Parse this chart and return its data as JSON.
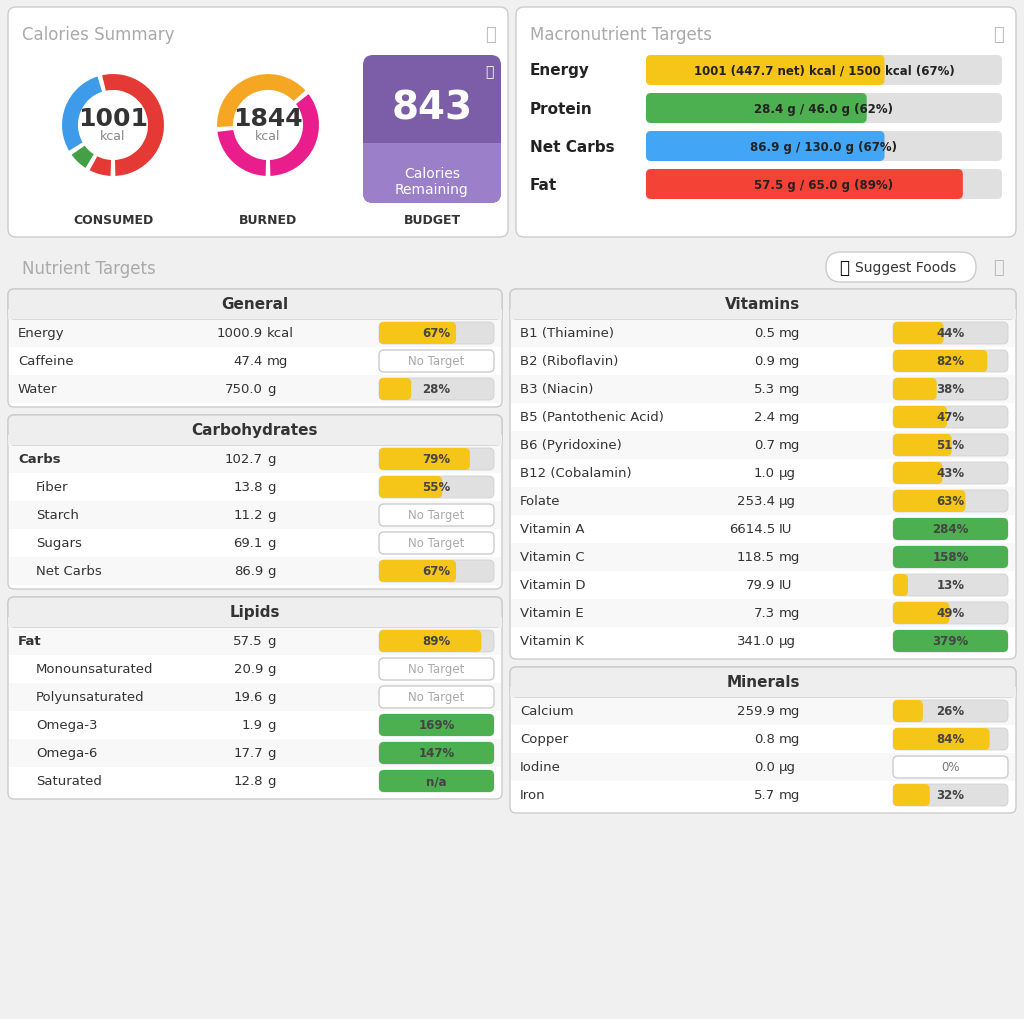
{
  "bg_color": "#f0f0f0",
  "panel_bg": "#ffffff",
  "panel_border": "#d0d0d0",
  "title_color": "#999999",
  "section_header_bg": "#eeeeee",
  "bar_bg_color": "#e0e0e0",
  "bar_orange_color": "#f5c518",
  "bar_green_color": "#4caf50",
  "no_target_text": "#aaaaaa",
  "purple_dark": "#7b5ea7",
  "purple_light": "#9b7fc8",
  "calories_summary": {
    "title": "Calories Summary",
    "consumed_value": "1001",
    "consumed_label": "kcal",
    "consumed_text": "CONSUMED",
    "burned_value": "1844",
    "burned_label": "kcal",
    "burned_text": "BURNED",
    "budget_value": "843",
    "budget_text": "Calories\nRemaining",
    "budget_label": "BUDGET"
  },
  "macronutrient_targets": {
    "title": "Macronutrient Targets",
    "rows": [
      {
        "label": "Energy",
        "text": "1001 (447.7 net) kcal / 1500 kcal (67%)",
        "pct": 0.67,
        "color": "#f5c518"
      },
      {
        "label": "Protein",
        "text": "28.4 g / 46.0 g (62%)",
        "pct": 0.62,
        "color": "#4caf50"
      },
      {
        "label": "Net Carbs",
        "text": "86.9 g / 130.0 g (67%)",
        "pct": 0.67,
        "color": "#42a5f5"
      },
      {
        "label": "Fat",
        "text": "57.5 g / 65.0 g (89%)",
        "pct": 0.89,
        "color": "#f44336"
      }
    ]
  },
  "nutrient_targets_title": "Nutrient Targets",
  "general_section": {
    "title": "General",
    "rows": [
      {
        "name": "Energy",
        "value": "1000.9",
        "unit": "kcal",
        "bar_pct": 0.67,
        "bar_type": "orange",
        "label": "67%",
        "indent": false
      },
      {
        "name": "Caffeine",
        "value": "47.4",
        "unit": "mg",
        "bar_pct": 0,
        "bar_type": "none",
        "label": "No Target",
        "indent": false
      },
      {
        "name": "Water",
        "value": "750.0",
        "unit": "g",
        "bar_pct": 0.28,
        "bar_type": "orange",
        "label": "28%",
        "indent": false
      }
    ]
  },
  "carbs_section": {
    "title": "Carbohydrates",
    "rows": [
      {
        "name": "Carbs",
        "value": "102.7",
        "unit": "g",
        "bar_pct": 0.79,
        "bar_type": "orange",
        "label": "79%",
        "indent": false
      },
      {
        "name": "Fiber",
        "value": "13.8",
        "unit": "g",
        "bar_pct": 0.55,
        "bar_type": "orange",
        "label": "55%",
        "indent": true
      },
      {
        "name": "Starch",
        "value": "11.2",
        "unit": "g",
        "bar_pct": 0,
        "bar_type": "none",
        "label": "No Target",
        "indent": true
      },
      {
        "name": "Sugars",
        "value": "69.1",
        "unit": "g",
        "bar_pct": 0,
        "bar_type": "none",
        "label": "No Target",
        "indent": true
      },
      {
        "name": "Net Carbs",
        "value": "86.9",
        "unit": "g",
        "bar_pct": 0.67,
        "bar_type": "orange",
        "label": "67%",
        "indent": true
      }
    ]
  },
  "lipids_section": {
    "title": "Lipids",
    "rows": [
      {
        "name": "Fat",
        "value": "57.5",
        "unit": "g",
        "bar_pct": 0.89,
        "bar_type": "orange",
        "label": "89%",
        "indent": false
      },
      {
        "name": "Monounsaturated",
        "value": "20.9",
        "unit": "g",
        "bar_pct": 0,
        "bar_type": "none",
        "label": "No Target",
        "indent": true
      },
      {
        "name": "Polyunsaturated",
        "value": "19.6",
        "unit": "g",
        "bar_pct": 0,
        "bar_type": "none",
        "label": "No Target",
        "indent": true
      },
      {
        "name": "Omega-3",
        "value": "1.9",
        "unit": "g",
        "bar_pct": 1.0,
        "bar_type": "green",
        "label": "169%",
        "indent": true
      },
      {
        "name": "Omega-6",
        "value": "17.7",
        "unit": "g",
        "bar_pct": 1.0,
        "bar_type": "green",
        "label": "147%",
        "indent": true
      },
      {
        "name": "Saturated",
        "value": "12.8",
        "unit": "g",
        "bar_pct": 1.0,
        "bar_type": "green",
        "label": "n/a",
        "indent": true
      }
    ]
  },
  "vitamins_section": {
    "title": "Vitamins",
    "rows": [
      {
        "name": "B1 (Thiamine)",
        "value": "0.5",
        "unit": "mg",
        "bar_pct": 0.44,
        "bar_type": "orange",
        "label": "44%"
      },
      {
        "name": "B2 (Riboflavin)",
        "value": "0.9",
        "unit": "mg",
        "bar_pct": 0.82,
        "bar_type": "orange",
        "label": "82%"
      },
      {
        "name": "B3 (Niacin)",
        "value": "5.3",
        "unit": "mg",
        "bar_pct": 0.38,
        "bar_type": "orange",
        "label": "38%"
      },
      {
        "name": "B5 (Pantothenic Acid)",
        "value": "2.4",
        "unit": "mg",
        "bar_pct": 0.47,
        "bar_type": "orange",
        "label": "47%"
      },
      {
        "name": "B6 (Pyridoxine)",
        "value": "0.7",
        "unit": "mg",
        "bar_pct": 0.51,
        "bar_type": "orange",
        "label": "51%"
      },
      {
        "name": "B12 (Cobalamin)",
        "value": "1.0",
        "unit": "μg",
        "bar_pct": 0.43,
        "bar_type": "orange",
        "label": "43%"
      },
      {
        "name": "Folate",
        "value": "253.4",
        "unit": "μg",
        "bar_pct": 0.63,
        "bar_type": "orange",
        "label": "63%"
      },
      {
        "name": "Vitamin A",
        "value": "6614.5",
        "unit": "IU",
        "bar_pct": 1.0,
        "bar_type": "green",
        "label": "284%"
      },
      {
        "name": "Vitamin C",
        "value": "118.5",
        "unit": "mg",
        "bar_pct": 1.0,
        "bar_type": "green",
        "label": "158%"
      },
      {
        "name": "Vitamin D",
        "value": "79.9",
        "unit": "IU",
        "bar_pct": 0.13,
        "bar_type": "orange",
        "label": "13%"
      },
      {
        "name": "Vitamin E",
        "value": "7.3",
        "unit": "mg",
        "bar_pct": 0.49,
        "bar_type": "orange",
        "label": "49%"
      },
      {
        "name": "Vitamin K",
        "value": "341.0",
        "unit": "μg",
        "bar_pct": 1.0,
        "bar_type": "green",
        "label": "379%"
      }
    ]
  },
  "minerals_section": {
    "title": "Minerals",
    "rows": [
      {
        "name": "Calcium",
        "value": "259.9",
        "unit": "mg",
        "bar_pct": 0.26,
        "bar_type": "orange",
        "label": "26%"
      },
      {
        "name": "Copper",
        "value": "0.8",
        "unit": "mg",
        "bar_pct": 0.84,
        "bar_type": "orange",
        "label": "84%"
      },
      {
        "name": "Iodine",
        "value": "0.0",
        "unit": "μg",
        "bar_pct": 0.0,
        "bar_type": "none_white",
        "label": "0%"
      },
      {
        "name": "Iron",
        "value": "5.7",
        "unit": "mg",
        "bar_pct": 0.32,
        "bar_type": "orange",
        "label": "32%"
      }
    ]
  }
}
